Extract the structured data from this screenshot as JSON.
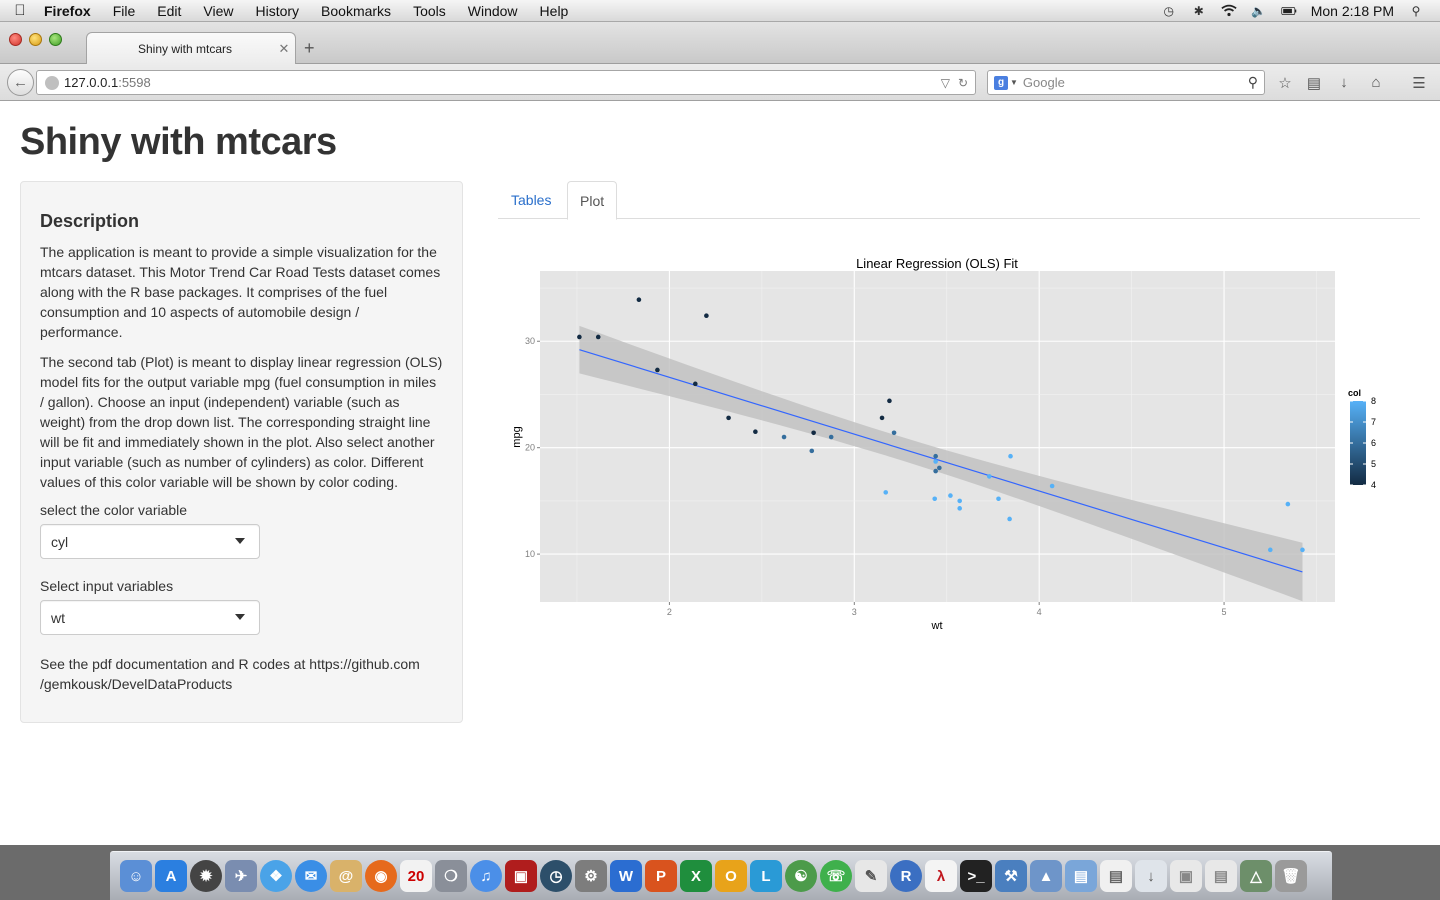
{
  "menubar": {
    "app": "Firefox",
    "items": [
      "File",
      "Edit",
      "View",
      "History",
      "Bookmarks",
      "Tools",
      "Window",
      "Help"
    ],
    "clock": "Mon 2:18 PM"
  },
  "browser": {
    "tab_title": "Shiny with mtcars",
    "url_host": "127.0.0.1",
    "url_port": ":5598",
    "search_placeholder": "Google"
  },
  "page": {
    "title": "Shiny with mtcars",
    "sidebar": {
      "heading": "Description",
      "paragraph1": "The application is meant to provide a simple visualization for the mtcars dataset. This Motor Trend Car Road Tests dataset comes along with the R base packages. It comprises of the fuel consumption and 10 aspects of automobile design / performance.",
      "paragraph2": "The second tab (Plot) is meant to display linear regression (OLS) model fits for the output variable mpg (fuel consumption in miles / gallon). Choose an input (independent) variable (such as weight) from the drop down list. The corresponding straight line will be fit and immediately shown in the plot. Also select another input variable (such as number of cylinders) as color. Different values of this color variable will be shown by color coding.",
      "color_label": "select the color variable",
      "color_value": "cyl",
      "input_label": "Select input variables",
      "input_value": "wt",
      "footer": "See the pdf documentation and R codes at https://github.com /gemkousk/DevelDataProducts"
    },
    "tabs": [
      "Tables",
      "Plot"
    ],
    "active_tab": "Plot"
  },
  "chart_data": {
    "type": "scatter",
    "title": "Linear Regression (OLS) Fit",
    "xlabel": "wt",
    "ylabel": "mpg",
    "xlim": [
      1.3,
      5.6
    ],
    "ylim": [
      5.5,
      36.6
    ],
    "xticks": [
      2,
      3,
      4,
      5
    ],
    "yticks": [
      10,
      20,
      30
    ],
    "legend": {
      "title": "col",
      "min": 4,
      "max": 8,
      "ticks": [
        4,
        5,
        6,
        7,
        8
      ],
      "placement": "right"
    },
    "colors": {
      "low": "#132b43",
      "high": "#56b1f7",
      "fit": "#3366ff",
      "band": "#c2c2c2",
      "panel": "#e5e5e5"
    },
    "fit": {
      "intercept": 37.29,
      "slope": -5.34
    },
    "points": [
      {
        "x": 2.62,
        "y": 21.0,
        "c": 6
      },
      {
        "x": 2.875,
        "y": 21.0,
        "c": 6
      },
      {
        "x": 2.32,
        "y": 22.8,
        "c": 4
      },
      {
        "x": 3.215,
        "y": 21.4,
        "c": 6
      },
      {
        "x": 3.44,
        "y": 18.7,
        "c": 8
      },
      {
        "x": 3.46,
        "y": 18.1,
        "c": 6
      },
      {
        "x": 3.57,
        "y": 14.3,
        "c": 8
      },
      {
        "x": 3.19,
        "y": 24.4,
        "c": 4
      },
      {
        "x": 3.15,
        "y": 22.8,
        "c": 4
      },
      {
        "x": 3.44,
        "y": 19.2,
        "c": 6
      },
      {
        "x": 3.44,
        "y": 17.8,
        "c": 6
      },
      {
        "x": 4.07,
        "y": 16.4,
        "c": 8
      },
      {
        "x": 3.73,
        "y": 17.3,
        "c": 8
      },
      {
        "x": 3.78,
        "y": 15.2,
        "c": 8
      },
      {
        "x": 5.25,
        "y": 10.4,
        "c": 8
      },
      {
        "x": 5.424,
        "y": 10.4,
        "c": 8
      },
      {
        "x": 5.345,
        "y": 14.7,
        "c": 8
      },
      {
        "x": 2.2,
        "y": 32.4,
        "c": 4
      },
      {
        "x": 1.615,
        "y": 30.4,
        "c": 4
      },
      {
        "x": 1.835,
        "y": 33.9,
        "c": 4
      },
      {
        "x": 2.465,
        "y": 21.5,
        "c": 4
      },
      {
        "x": 3.52,
        "y": 15.5,
        "c": 8
      },
      {
        "x": 3.435,
        "y": 15.2,
        "c": 8
      },
      {
        "x": 3.84,
        "y": 13.3,
        "c": 8
      },
      {
        "x": 3.845,
        "y": 19.2,
        "c": 8
      },
      {
        "x": 1.935,
        "y": 27.3,
        "c": 4
      },
      {
        "x": 2.14,
        "y": 26.0,
        "c": 4
      },
      {
        "x": 1.513,
        "y": 30.4,
        "c": 4
      },
      {
        "x": 3.17,
        "y": 15.8,
        "c": 8
      },
      {
        "x": 2.77,
        "y": 19.7,
        "c": 6
      },
      {
        "x": 3.57,
        "y": 15.0,
        "c": 8
      },
      {
        "x": 2.78,
        "y": 21.4,
        "c": 4
      }
    ]
  }
}
